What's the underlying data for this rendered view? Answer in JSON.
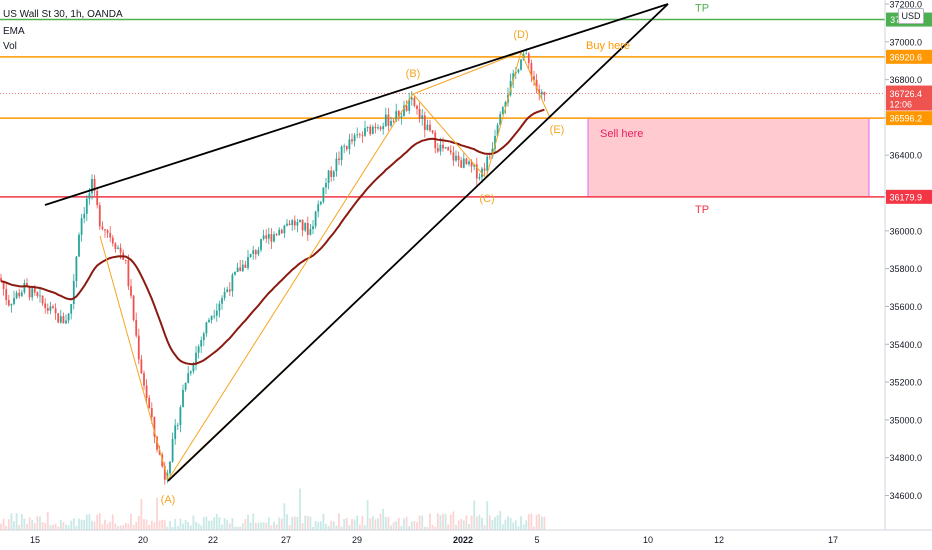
{
  "header": {
    "title": "US Wall St 30, 1h, OANDA",
    "ema_label": "EMA",
    "vol_label": "Vol"
  },
  "currency_button": "USD",
  "chart_data": {
    "type": "candlestick",
    "ylim": [
      34450,
      37300
    ],
    "y_ticks": [
      34600,
      34800,
      35000,
      35200,
      35400,
      35600,
      35800,
      36000,
      36200,
      36400,
      36600,
      36800,
      37000,
      37200
    ],
    "x_tick_labels": [
      "15",
      "20",
      "22",
      "27",
      "29",
      "2022",
      "5",
      "10",
      "12",
      "17"
    ],
    "current_price": "36726.4",
    "countdown": "12:06",
    "price_levels": [
      {
        "value": 37117.7,
        "label": "37117.7",
        "color": "#4caf50",
        "tag": "TP"
      },
      {
        "value": 36920.6,
        "label": "36920.6",
        "color": "#ff9800",
        "tag": "Buy here"
      },
      {
        "value": 36596.2,
        "label": "36596.2",
        "color": "#ff9800",
        "tag": ""
      },
      {
        "value": 36179.9,
        "label": "36179.9",
        "color": "#f23645",
        "tag": "TP"
      }
    ],
    "sell_zone": {
      "y_top": 36596.2,
      "y_bottom": 36179.9,
      "label": "Sell here"
    },
    "pattern_points": [
      {
        "label": "(A)",
        "value": 34680
      },
      {
        "label": "(B)",
        "value": 36700
      },
      {
        "label": "(C)",
        "value": 36275
      },
      {
        "label": "(D)",
        "value": 36950
      },
      {
        "label": "(E)",
        "value": 36580
      }
    ],
    "colors": {
      "up": "#26a69a",
      "down": "#ef5350",
      "ema": "#8b1a10",
      "wedge": "#000000",
      "pattern": "#f5a623"
    }
  }
}
